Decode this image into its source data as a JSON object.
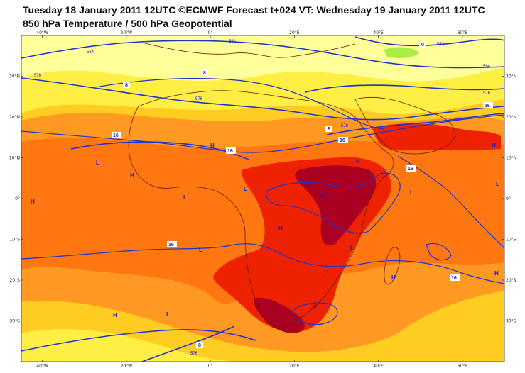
{
  "title_line1": "Tuesday 18 January 2011 12UTC ©ECMWF Forecast t+024 VT: Wednesday 19 January 2011 12UTC",
  "title_line2": "850 hPa Temperature / 500 hPa Geopotential",
  "colors": {
    "pale_yellow": "#ffff99",
    "yellow": "#ffee44",
    "gold": "#ffcc22",
    "orange": "#ff9922",
    "dark_orange": "#ff7711",
    "red": "#ee2200",
    "dark_red": "#aa0022",
    "green": "#aaee44",
    "contour": "#2233cc",
    "coast": "#6b1a00"
  },
  "map": {
    "lon_min": -45,
    "lon_max": 70,
    "lat_min": -40,
    "lat_max": 40,
    "lon_ticks": [
      {
        "value": -40,
        "label": "40°W"
      },
      {
        "value": -20,
        "label": "20°W"
      },
      {
        "value": 0,
        "label": "0°"
      },
      {
        "value": 20,
        "label": "20°E"
      },
      {
        "value": 40,
        "label": "40°E"
      },
      {
        "value": 60,
        "label": "60°E"
      }
    ],
    "lat_ticks": [
      {
        "value": 30,
        "label": "30°N"
      },
      {
        "value": 20,
        "label": "20°N"
      },
      {
        "value": 10,
        "label": "10°N"
      },
      {
        "value": 0,
        "label": "0°"
      },
      {
        "value": -10,
        "label": "10°S"
      },
      {
        "value": -20,
        "label": "20°S"
      },
      {
        "value": -30,
        "label": "30°S"
      }
    ]
  },
  "geopotential_labels": [
    "564",
    "576",
    "564",
    "576",
    "576",
    "564",
    "576",
    "552",
    "576"
  ],
  "temperature_labels": [
    "8",
    "8",
    "16",
    "16",
    "16",
    "16",
    "8",
    "16",
    "16",
    "16",
    "8",
    "0"
  ],
  "pressure_markers": [
    "H",
    "H",
    "H",
    "H",
    "H",
    "H",
    "H",
    "H",
    "H",
    "H",
    "L",
    "L",
    "L",
    "L",
    "L",
    "L",
    "L",
    "L",
    "L",
    "L"
  ]
}
